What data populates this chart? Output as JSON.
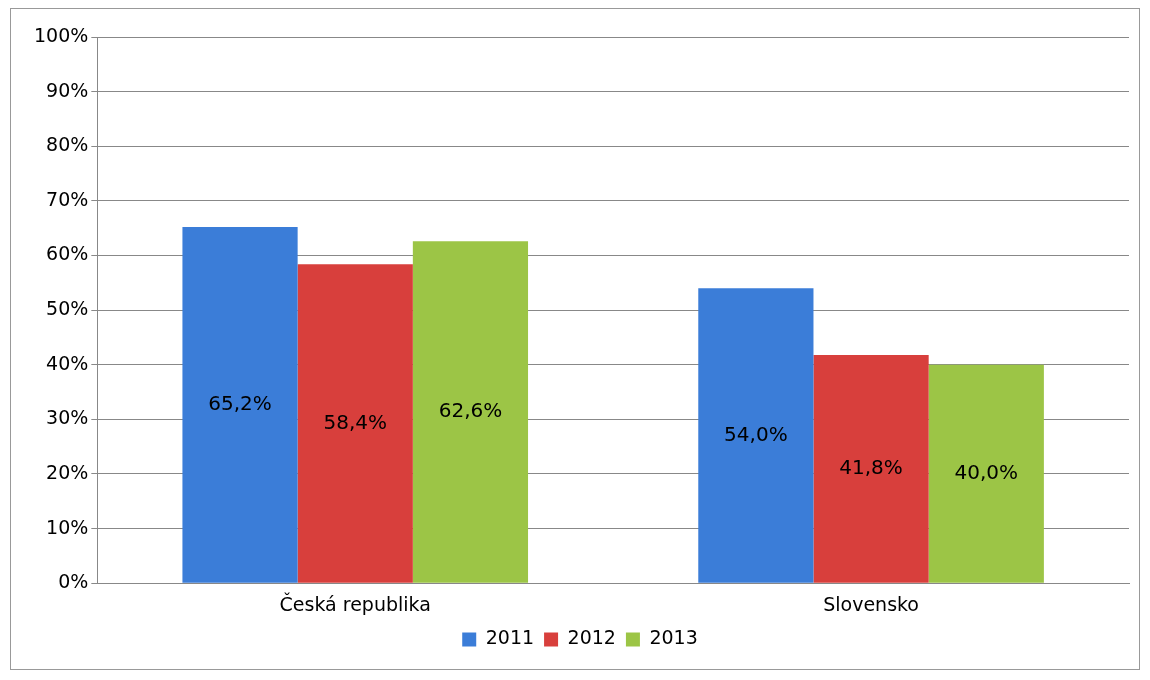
{
  "chart_data": {
    "type": "bar",
    "categories": [
      "Česká republika",
      "Slovensko"
    ],
    "series": [
      {
        "name": "2011",
        "color": "#3b7dd8",
        "values": [
          65.2,
          54.0
        ],
        "value_labels": [
          "65,2%",
          "54,0%"
        ]
      },
      {
        "name": "2012",
        "color": "#d83f3c",
        "values": [
          58.4,
          41.8
        ],
        "value_labels": [
          "58,4%",
          "41,8%"
        ]
      },
      {
        "name": "2013",
        "color": "#9cc546",
        "values": [
          62.6,
          40.0
        ],
        "value_labels": [
          "62,6%",
          "40,0%"
        ]
      }
    ],
    "ylim": [
      0,
      100
    ],
    "yticks": [
      {
        "value": 0,
        "label": "0%"
      },
      {
        "value": 10,
        "label": "10%"
      },
      {
        "value": 20,
        "label": "20%"
      },
      {
        "value": 30,
        "label": "30%"
      },
      {
        "value": 40,
        "label": "40%"
      },
      {
        "value": 50,
        "label": "50%"
      },
      {
        "value": 60,
        "label": "60%"
      },
      {
        "value": 70,
        "label": "70%"
      },
      {
        "value": 80,
        "label": "80%"
      },
      {
        "value": 90,
        "label": "90%"
      },
      {
        "value": 100,
        "label": "100%"
      }
    ],
    "grid": "y",
    "legend": "bottom"
  }
}
